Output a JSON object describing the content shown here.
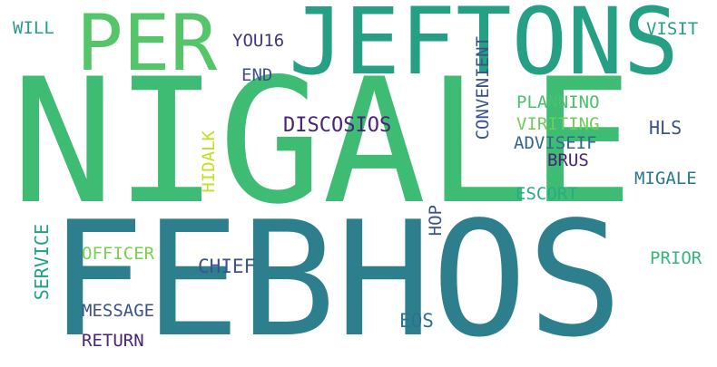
{
  "words": {
    "nigale": {
      "text": "NIGALE",
      "color": "#3fbc73"
    },
    "febhos": {
      "text": "FEBHOS",
      "color": "#2e7f8e"
    },
    "jeftons": {
      "text": "JEFTONS",
      "color": "#25a085"
    },
    "per": {
      "text": "PER",
      "color": "#54c568"
    },
    "will": {
      "text": "WILL",
      "color": "#2a9b8a"
    },
    "you16": {
      "text": "YOU16",
      "color": "#46337e"
    },
    "end": {
      "text": "END",
      "color": "#3b528b"
    },
    "visit": {
      "text": "VISIT",
      "color": "#25a085"
    },
    "convenient": {
      "text": "CONVENIENT",
      "color": "#3b528b"
    },
    "planning": {
      "text": "PLANNINO",
      "color": "#4ac16d"
    },
    "viriting": {
      "text": "VIRITING",
      "color": "#6ece58"
    },
    "adviseif": {
      "text": "ADVISEIF",
      "color": "#31688e"
    },
    "brus": {
      "text": "BRUS",
      "color": "#482475"
    },
    "hls": {
      "text": "HLS",
      "color": "#3b528b"
    },
    "discosios": {
      "text": "DISCOSIOS",
      "color": "#482475"
    },
    "hidalk": {
      "text": "HIDALK",
      "color": "#c2df23"
    },
    "migale": {
      "text": "MIGALE",
      "color": "#2a788e"
    },
    "escort": {
      "text": "ESCORT",
      "color": "#26ad81"
    },
    "hop": {
      "text": "HOP",
      "color": "#3b528b"
    },
    "service": {
      "text": "SERVICE",
      "color": "#1fa187"
    },
    "officer": {
      "text": "OFFICER",
      "color": "#7ad151"
    },
    "chief": {
      "text": "CHIEF",
      "color": "#3b528b"
    },
    "prior": {
      "text": "PRIOR",
      "color": "#35b779"
    },
    "message": {
      "text": "MESSAGE",
      "color": "#3b528b"
    },
    "eos": {
      "text": "EOS",
      "color": "#2c728e"
    },
    "return": {
      "text": "RETURN",
      "color": "#482475"
    }
  }
}
